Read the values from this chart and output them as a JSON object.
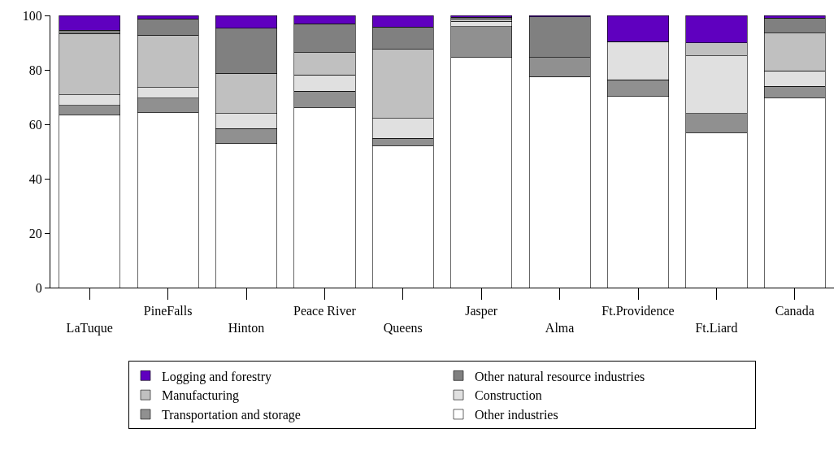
{
  "chart_data": {
    "type": "bar",
    "stacked": true,
    "categories": [
      "LaTuque",
      "PineFalls",
      "Hinton",
      "Peace River",
      "Queens",
      "Jasper",
      "Alma",
      "Ft.Providence",
      "Ft.Liard",
      "Canada"
    ],
    "series": [
      {
        "name": "Other industries",
        "color": "#ffffff",
        "values": [
          63.3,
          64.3,
          53.1,
          66.0,
          52.0,
          84.6,
          77.6,
          70.3,
          56.8,
          69.7
        ]
      },
      {
        "name": "Transportation and storage",
        "color": "#909090",
        "values": [
          3.6,
          5.4,
          5.3,
          6.2,
          2.9,
          11.3,
          7.0,
          6.0,
          7.1,
          4.2
        ]
      },
      {
        "name": "Construction",
        "color": "#e0e0e0",
        "values": [
          3.9,
          3.8,
          5.6,
          5.9,
          7.3,
          1.9,
          0,
          14.1,
          21.2,
          5.8
        ]
      },
      {
        "name": "Manufacturing",
        "color": "#c0c0c0",
        "values": [
          22.6,
          19.3,
          14.8,
          8.2,
          25.3,
          0.8,
          0,
          0,
          4.8,
          13.8
        ]
      },
      {
        "name": "Other natural resource industries",
        "color": "#808080",
        "values": [
          1.1,
          6.0,
          16.5,
          10.7,
          8.3,
          0.8,
          14.9,
          0,
          0,
          5.5
        ]
      },
      {
        "name": "Logging and forestry",
        "color": "#5f00bf",
        "values": [
          5.5,
          1.2,
          4.7,
          3.0,
          4.2,
          0.5,
          0.5,
          9.6,
          10.1,
          1.0
        ]
      }
    ],
    "ylim": [
      0,
      100
    ],
    "yticks": [
      0,
      20,
      40,
      60,
      80,
      100
    ],
    "legend": "bottom"
  }
}
